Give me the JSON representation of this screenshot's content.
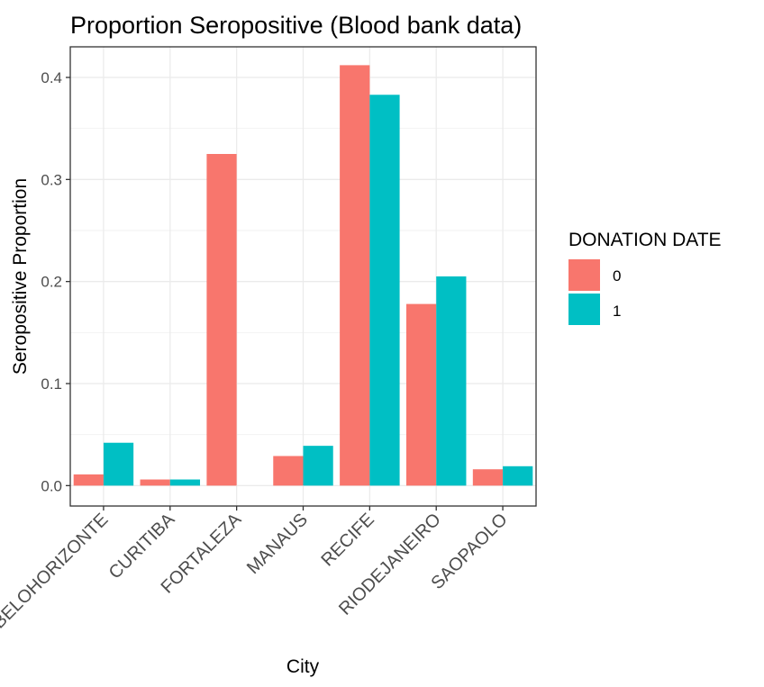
{
  "chart_data": {
    "type": "bar",
    "title": "Proportion Seropositive (Blood bank data)",
    "xlabel": "City",
    "ylabel": "Seropositive Proportion",
    "categories": [
      "BELOHORIZONTE",
      "CURITIBA",
      "FORTALEZA",
      "MANAUS",
      "RECIFE",
      "RIODEJANEIRO",
      "SAOPAOLO"
    ],
    "ylim": [
      -0.02,
      0.43
    ],
    "yticks": [
      "0.0",
      "0.1",
      "0.2",
      "0.3",
      "0.4"
    ],
    "grid": true,
    "legend": {
      "title": "DONATION DATE",
      "placement": "right"
    },
    "series": [
      {
        "name": "0",
        "color": "#F8766D",
        "values": [
          0.011,
          0.006,
          0.325,
          0.029,
          0.412,
          0.178,
          0.016
        ]
      },
      {
        "name": "1",
        "color": "#00BFC4",
        "values": [
          0.042,
          0.006,
          null,
          0.039,
          0.383,
          0.205,
          0.019
        ]
      }
    ]
  }
}
